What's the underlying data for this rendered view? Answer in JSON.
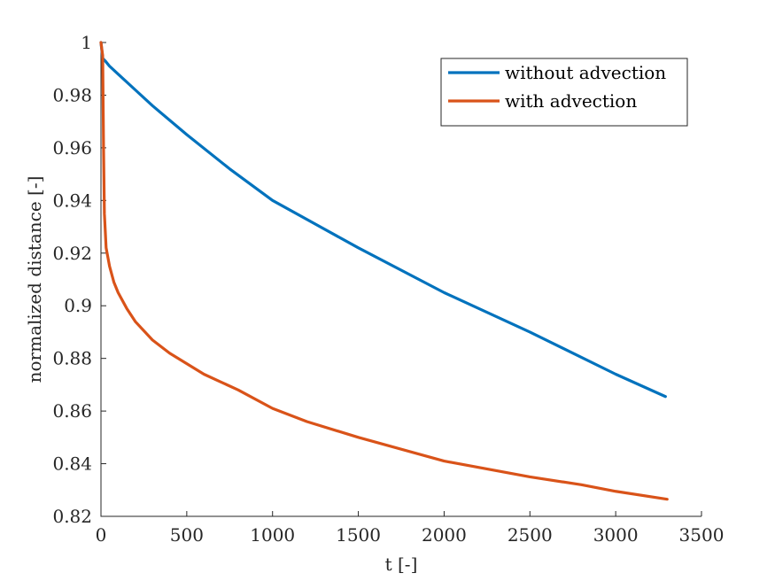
{
  "chart_data": {
    "type": "line",
    "title": "",
    "xlabel": "t [-]",
    "ylabel": "normalized distance [-]",
    "xlim": [
      0,
      3500
    ],
    "ylim": [
      0.82,
      1.0
    ],
    "xticks": [
      0,
      500,
      1000,
      1500,
      2000,
      2500,
      3000,
      3500
    ],
    "xtick_labels": [
      "0",
      "500",
      "1000",
      "1500",
      "2000",
      "2500",
      "3000",
      "3500"
    ],
    "yticks": [
      0.82,
      0.84,
      0.86,
      0.88,
      0.9,
      0.92,
      0.94,
      0.96,
      0.98,
      1.0
    ],
    "ytick_labels": [
      "0.82",
      "0.84",
      "0.86",
      "0.88",
      "0.9",
      "0.92",
      "0.94",
      "0.96",
      "0.98",
      "1"
    ],
    "grid": false,
    "legend_position": "top-right",
    "series": [
      {
        "name": "without advection",
        "color": "#0072BD",
        "x": [
          0,
          10,
          25,
          50,
          100,
          200,
          300,
          500,
          750,
          1000,
          1500,
          2000,
          2500,
          3000,
          3290
        ],
        "y": [
          1.0,
          0.994,
          0.993,
          0.991,
          0.988,
          0.982,
          0.976,
          0.965,
          0.952,
          0.94,
          0.922,
          0.905,
          0.89,
          0.874,
          0.8655
        ]
      },
      {
        "name": "with advection",
        "color": "#D95319",
        "x": [
          0,
          10,
          15,
          20,
          30,
          50,
          75,
          100,
          150,
          200,
          300,
          400,
          500,
          600,
          700,
          800,
          1000,
          1200,
          1500,
          2000,
          2500,
          2800,
          3000,
          3300
        ],
        "y": [
          1.0,
          0.995,
          0.96,
          0.935,
          0.922,
          0.915,
          0.909,
          0.905,
          0.899,
          0.894,
          0.887,
          0.882,
          0.878,
          0.874,
          0.871,
          0.868,
          0.861,
          0.856,
          0.85,
          0.841,
          0.835,
          0.832,
          0.8295,
          0.8265
        ]
      }
    ]
  }
}
